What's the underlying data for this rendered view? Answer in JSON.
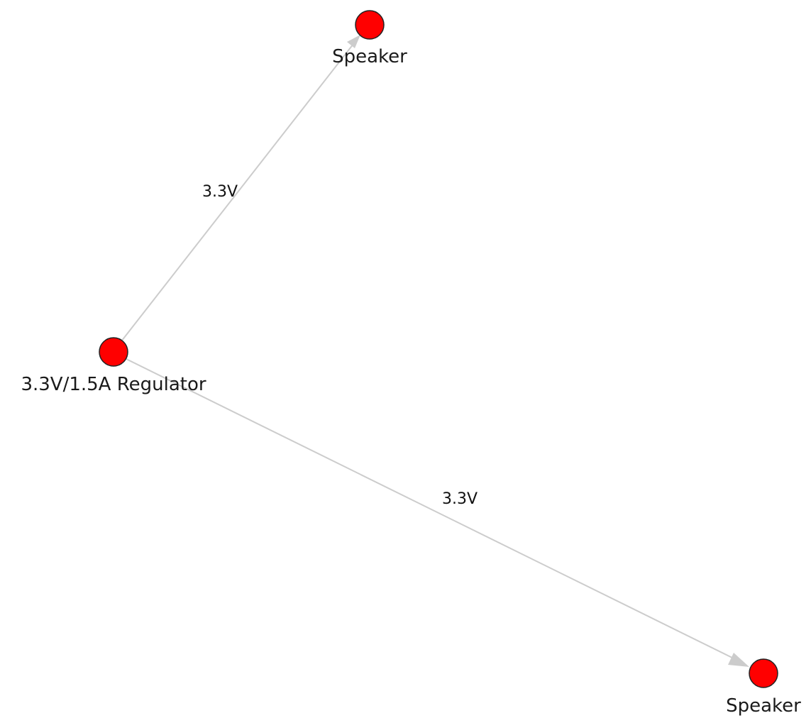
{
  "diagram": {
    "node_color": "#ff0000",
    "edge_color": "#cccccc",
    "nodes": [
      {
        "id": "regulator",
        "label": "3.3V/1.5A Regulator"
      },
      {
        "id": "speaker_top",
        "label": "Speaker"
      },
      {
        "id": "speaker_bottom",
        "label": "Speaker"
      }
    ],
    "edges": [
      {
        "from": "regulator",
        "to": "speaker_top",
        "label": "3.3V"
      },
      {
        "from": "regulator",
        "to": "speaker_bottom",
        "label": "3.3V"
      }
    ]
  }
}
